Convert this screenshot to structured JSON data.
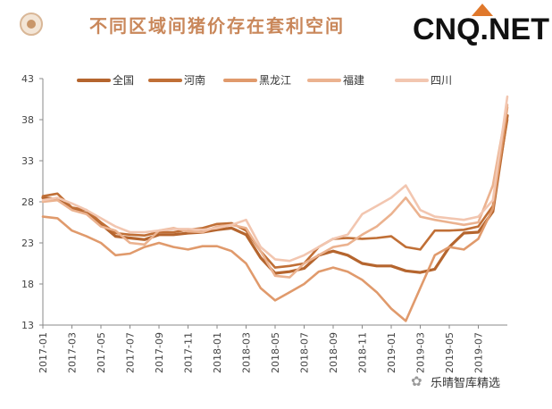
{
  "header": {
    "title": "不同区域间猪价存在套利空间",
    "logo": "CNQ.NET",
    "watermark": "乐晴智库精选"
  },
  "icons": {
    "header": "circle-badge-icon",
    "logo": "roof-icon",
    "watermark": "wechat-icon"
  },
  "chart_data": {
    "type": "line",
    "title": "",
    "xlabel": "",
    "ylabel": "",
    "ylim": [
      13,
      43
    ],
    "yticks": [
      13,
      18,
      23,
      28,
      33,
      38,
      43
    ],
    "xticks": [
      "2017-01",
      "2017-03",
      "2017-05",
      "2017-07",
      "2017-09",
      "2017-11",
      "2018-01",
      "2018-03",
      "2018-05",
      "2018-07",
      "2018-09",
      "2018-11",
      "2019-01",
      "2019-03",
      "2019-05",
      "2019-07"
    ],
    "x_start": "2017-01",
    "x_end": "2019-09",
    "legend_position": "top",
    "series": [
      {
        "name": "全国",
        "color": "#b5652e",
        "width": 3.2,
        "x": [
          0,
          1,
          2,
          3,
          4,
          5,
          6,
          7,
          8,
          9,
          10,
          11,
          12,
          13,
          14,
          15,
          16,
          17,
          18,
          19,
          20,
          21,
          22,
          23,
          24,
          25,
          26,
          27,
          28,
          29,
          30,
          31,
          32
        ],
        "values": [
          28.5,
          28.3,
          27.2,
          26.6,
          25.3,
          23.8,
          23.6,
          23.4,
          24.0,
          24.0,
          24.2,
          24.3,
          24.6,
          24.8,
          24.0,
          21.2,
          19.3,
          19.5,
          19.9,
          21.5,
          22.0,
          21.5,
          20.5,
          20.2,
          20.2,
          19.6,
          19.4,
          19.8,
          22.5,
          24.2,
          24.3,
          26.8,
          38.5
        ]
      },
      {
        "name": "河南",
        "color": "#c06f36",
        "width": 2.6,
        "x": [
          0,
          1,
          2,
          3,
          4,
          5,
          6,
          7,
          8,
          9,
          10,
          11,
          12,
          13,
          14,
          15,
          16,
          17,
          18,
          19,
          20,
          21,
          22,
          23,
          24,
          25,
          26,
          27,
          28,
          29,
          30,
          31,
          32
        ],
        "values": [
          28.7,
          29.0,
          27.3,
          27.0,
          25.5,
          24.2,
          24.0,
          23.9,
          24.3,
          24.3,
          24.6,
          24.8,
          25.3,
          25.4,
          24.5,
          22.0,
          20.0,
          20.2,
          20.5,
          22.5,
          23.5,
          23.6,
          23.5,
          23.6,
          23.8,
          22.5,
          22.2,
          24.5,
          24.5,
          24.6,
          25.0,
          27.5,
          38.0
        ]
      },
      {
        "name": "黑龙江",
        "color": "#e09a6c",
        "width": 2.6,
        "x": [
          0,
          1,
          2,
          3,
          4,
          5,
          6,
          7,
          8,
          9,
          10,
          11,
          12,
          13,
          14,
          15,
          16,
          17,
          18,
          19,
          20,
          21,
          22,
          23,
          24,
          25,
          26,
          27,
          28,
          29,
          30,
          31,
          32
        ],
        "values": [
          26.2,
          26.0,
          24.5,
          23.8,
          23.0,
          21.5,
          21.7,
          22.5,
          23.0,
          22.5,
          22.2,
          22.6,
          22.6,
          22.0,
          20.5,
          17.5,
          16.0,
          17.0,
          18.0,
          19.5,
          20.0,
          19.5,
          18.5,
          17.0,
          15.0,
          13.5,
          17.5,
          21.5,
          22.5,
          22.2,
          23.5,
          27.2,
          39.5
        ]
      },
      {
        "name": "福建",
        "color": "#ebb28f",
        "width": 2.6,
        "x": [
          0,
          1,
          2,
          3,
          4,
          5,
          6,
          7,
          8,
          9,
          10,
          11,
          12,
          13,
          14,
          15,
          16,
          17,
          18,
          19,
          20,
          21,
          22,
          23,
          24,
          25,
          26,
          27,
          28,
          29,
          30,
          31,
          32
        ],
        "values": [
          28.0,
          28.2,
          27.0,
          26.5,
          25.0,
          24.5,
          23.0,
          22.8,
          24.5,
          24.8,
          24.4,
          24.3,
          25.0,
          25.2,
          24.8,
          22.0,
          19.0,
          18.8,
          20.5,
          21.5,
          22.5,
          22.8,
          24.0,
          25.0,
          26.5,
          28.5,
          26.2,
          25.8,
          25.5,
          25.2,
          25.5,
          30.0,
          39.8
        ]
      },
      {
        "name": "四川",
        "color": "#f2c6b0",
        "width": 2.6,
        "x": [
          0,
          1,
          2,
          3,
          4,
          5,
          6,
          7,
          8,
          9,
          10,
          11,
          12,
          13,
          14,
          15,
          16,
          17,
          18,
          19,
          20,
          21,
          22,
          23,
          24,
          25,
          26,
          27,
          28,
          29,
          30,
          31,
          32
        ],
        "values": [
          28.2,
          28.5,
          27.8,
          27.0,
          26.0,
          25.0,
          24.3,
          24.3,
          24.5,
          24.7,
          24.7,
          24.6,
          24.8,
          25.2,
          25.8,
          22.5,
          21.0,
          20.8,
          21.5,
          22.5,
          23.5,
          24.0,
          26.5,
          27.5,
          28.5,
          30.0,
          27.0,
          26.2,
          26.0,
          25.8,
          26.2,
          28.2,
          40.8
        ]
      }
    ]
  }
}
